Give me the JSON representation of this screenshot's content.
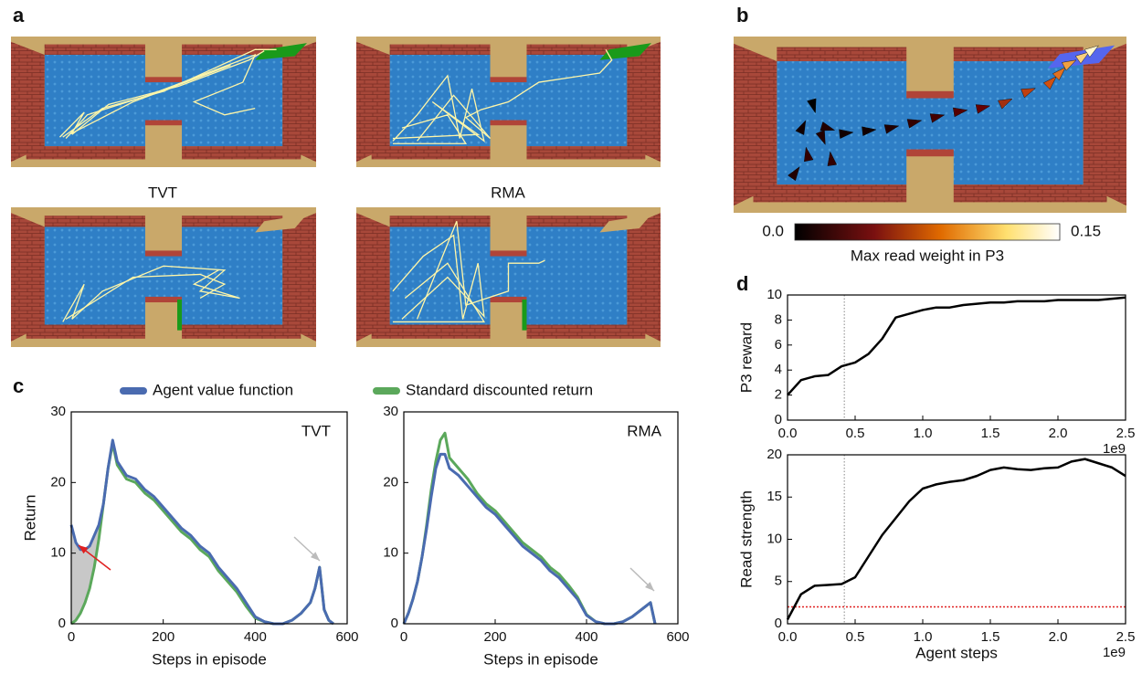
{
  "panel_labels": [
    "a",
    "b",
    "c",
    "d"
  ],
  "maze_labels": [
    "TVT",
    "RMA"
  ],
  "colorbar": {
    "ticks": [
      {
        "value": 0,
        "label": "0.0"
      },
      0.15
    ],
    "label": "Max read weight in P3"
  },
  "chart_data": [
    {
      "type": "line",
      "annotation": "TVT",
      "xlabel": "Steps in episode",
      "ylabel": "Return",
      "x": [
        0,
        10,
        20,
        30,
        40,
        50,
        60,
        70,
        80,
        90,
        100,
        120,
        140,
        160,
        180,
        200,
        220,
        240,
        260,
        280,
        300,
        320,
        340,
        360,
        380,
        400,
        420,
        440,
        460,
        480,
        500,
        520,
        530,
        540,
        550,
        560,
        570,
        580,
        600
      ],
      "xlim": [
        0,
        600
      ],
      "xticks": [
        0,
        200,
        400,
        600
      ],
      "ylim": [
        0,
        30
      ],
      "yticks": [
        0,
        10,
        20,
        30
      ],
      "series": [
        {
          "name": "Standard discounted return",
          "color": "#5ba85b",
          "values": [
            0,
            0.5,
            1.5,
            3,
            5,
            8,
            12,
            17,
            22,
            25.5,
            22.5,
            20.5,
            20,
            18.5,
            17.5,
            16,
            14.5,
            13,
            12,
            10.5,
            9.5,
            7.5,
            6,
            4.5,
            2.5,
            0.8,
            0.3,
            0,
            0,
            0.5,
            1.5,
            3,
            5,
            8,
            2,
            0.5,
            0,
            null,
            null
          ]
        },
        {
          "name": "Agent value function",
          "color": "#4a6bb0",
          "values": [
            14,
            11.5,
            10.5,
            10.5,
            11,
            12.5,
            14,
            17,
            22,
            26,
            23,
            21,
            20.5,
            19,
            18,
            16.5,
            15,
            13.5,
            12.5,
            11,
            10,
            8,
            6.5,
            5,
            3,
            1,
            0.3,
            0,
            0,
            0.5,
            1.5,
            3,
            5,
            8,
            2,
            0.5,
            0,
            null,
            null
          ]
        }
      ]
    },
    {
      "type": "line",
      "annotation": "RMA",
      "xlabel": "Steps in episode",
      "x": [
        0,
        10,
        20,
        30,
        40,
        50,
        60,
        70,
        80,
        90,
        100,
        120,
        140,
        160,
        180,
        200,
        220,
        240,
        260,
        280,
        300,
        320,
        340,
        360,
        380,
        400,
        420,
        440,
        460,
        480,
        500,
        520,
        530,
        540,
        550,
        560,
        570,
        580,
        600
      ],
      "xlim": [
        0,
        600
      ],
      "xticks": [
        0,
        200,
        400,
        600
      ],
      "ylim": [
        0,
        30
      ],
      "yticks": [
        0,
        10,
        20,
        30
      ],
      "series": [
        {
          "name": "Standard discounted return",
          "color": "#5ba85b",
          "values": [
            0,
            1.5,
            3.5,
            6,
            9.5,
            14,
            19,
            23,
            26,
            27,
            23.5,
            22,
            20.5,
            18.5,
            17,
            16,
            14.5,
            13,
            11.5,
            10.5,
            9.5,
            8,
            7,
            5.5,
            3.8,
            1.3,
            0.3,
            0,
            0,
            0.3,
            1,
            2,
            2.5,
            3,
            0,
            null,
            null,
            null,
            null
          ]
        },
        {
          "name": "Agent value function",
          "color": "#4a6bb0",
          "values": [
            0,
            1.5,
            3.5,
            6,
            9.5,
            13.5,
            18,
            22,
            24,
            24,
            22,
            21,
            19.5,
            18,
            16.5,
            15.5,
            14,
            12.5,
            11,
            10,
            9,
            7.5,
            6.5,
            5,
            3.5,
            1.2,
            0.3,
            0,
            0,
            0.3,
            1,
            2,
            2.5,
            3,
            0,
            null,
            null,
            null,
            null
          ]
        }
      ]
    },
    {
      "type": "line",
      "ylabel": "P3 reward",
      "x_offset_label": "1e9",
      "vline": 0.42,
      "x": [
        0,
        0.1,
        0.2,
        0.3,
        0.4,
        0.5,
        0.6,
        0.7,
        0.8,
        0.9,
        1.0,
        1.1,
        1.2,
        1.3,
        1.4,
        1.5,
        1.6,
        1.7,
        1.8,
        1.9,
        2.0,
        2.1,
        2.2,
        2.3,
        2.4,
        2.5
      ],
      "xlim": [
        0,
        2.5
      ],
      "xticks": [
        {
          "value": 0,
          "label": "0.0"
        },
        0.5,
        {
          "value": 1,
          "label": "1.0"
        },
        1.5,
        {
          "value": 2,
          "label": "2.0"
        },
        2.5
      ],
      "ylim": [
        0,
        10
      ],
      "yticks": [
        0,
        2,
        4,
        6,
        8,
        10
      ],
      "series": [
        {
          "color": "#000000",
          "values": [
            2.0,
            3.2,
            3.5,
            3.6,
            4.3,
            4.6,
            5.3,
            6.5,
            8.2,
            8.5,
            8.8,
            9.0,
            9.0,
            9.2,
            9.3,
            9.4,
            9.4,
            9.5,
            9.5,
            9.5,
            9.6,
            9.6,
            9.6,
            9.6,
            9.7,
            9.8
          ]
        }
      ]
    },
    {
      "type": "line",
      "ylabel": "Read strength",
      "xlabel": "Agent steps",
      "x_offset_label": "1e9",
      "vline": 0.42,
      "hline": 2,
      "hline_color": "#e02020",
      "x": [
        0,
        0.1,
        0.2,
        0.3,
        0.4,
        0.5,
        0.6,
        0.7,
        0.8,
        0.9,
        1.0,
        1.1,
        1.2,
        1.3,
        1.4,
        1.5,
        1.6,
        1.7,
        1.8,
        1.9,
        2.0,
        2.1,
        2.2,
        2.3,
        2.4,
        2.5
      ],
      "xlim": [
        0,
        2.5
      ],
      "xticks": [
        {
          "value": 0,
          "label": "0.0"
        },
        0.5,
        {
          "value": 1,
          "label": "1.0"
        },
        1.5,
        {
          "value": 2,
          "label": "2.0"
        },
        2.5
      ],
      "ylim": [
        0,
        20
      ],
      "yticks": [
        0,
        5,
        10,
        15,
        20
      ],
      "series": [
        {
          "color": "#000000",
          "values": [
            0.5,
            3.5,
            4.5,
            4.6,
            4.7,
            5.5,
            8,
            10.5,
            12.5,
            14.5,
            16,
            16.5,
            16.8,
            17,
            17.5,
            18.2,
            18.5,
            18.3,
            18.2,
            18.4,
            18.5,
            19.2,
            19.5,
            19,
            18.5,
            17.5
          ]
        }
      ]
    }
  ]
}
